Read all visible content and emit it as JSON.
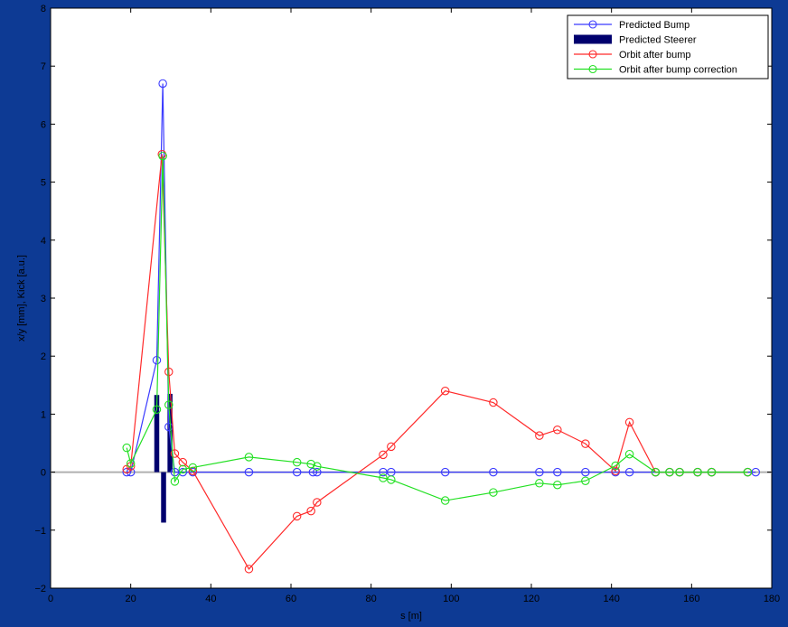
{
  "chart_data": {
    "type": "line",
    "title": "",
    "xlabel": "s [m]",
    "ylabel": "x/y [mm], Kick [a.u.]",
    "xlim": [
      0,
      180
    ],
    "ylim": [
      -2,
      8
    ],
    "xticks": [
      0,
      20,
      40,
      60,
      80,
      100,
      120,
      140,
      160,
      180
    ],
    "yticks": [
      -2,
      -1,
      0,
      1,
      2,
      3,
      4,
      5,
      6,
      7,
      8
    ],
    "grid": false,
    "legend_position": "top-right",
    "series": [
      {
        "name": "Predicted Bump",
        "kind": "line-marker",
        "color": "#3b3bff",
        "x": [
          19,
          20,
          26.5,
          28,
          29.5,
          31,
          33,
          35.5,
          49.5,
          61.5,
          65.5,
          66.5,
          83,
          85,
          98.5,
          110.5,
          122,
          126.5,
          133.5,
          141,
          144.5,
          151,
          154.5,
          157,
          161.5,
          165,
          174,
          176
        ],
        "y": [
          0,
          0,
          1.93,
          6.7,
          0.78,
          0,
          0,
          0,
          0,
          0,
          0,
          0,
          0,
          0,
          0,
          0,
          0,
          0,
          0,
          0,
          0,
          0,
          0,
          0,
          0,
          0,
          0,
          0
        ]
      },
      {
        "name": "Predicted Steerer",
        "kind": "bar",
        "color": "#00006e",
        "x": [
          26.5,
          28.2,
          29.8
        ],
        "y": [
          1.33,
          -0.87,
          1.35
        ]
      },
      {
        "name": "Orbit after bump",
        "kind": "line-marker",
        "color": "#ff2a2a",
        "x": [
          19,
          20,
          27.8,
          29.5,
          31,
          33,
          35.5,
          49.5,
          61.5,
          65,
          66.5,
          83,
          85,
          98.5,
          110.5,
          122,
          126.5,
          133.5,
          141,
          144.5,
          151,
          154.5,
          157,
          161.5,
          165,
          174
        ],
        "y": [
          0.05,
          0.1,
          5.48,
          1.73,
          0.32,
          0.17,
          0.02,
          -1.67,
          -0.76,
          -0.67,
          -0.52,
          0.3,
          0.44,
          1.4,
          1.2,
          0.63,
          0.73,
          0.49,
          0.02,
          0.86,
          0,
          0,
          0,
          0,
          0,
          0
        ]
      },
      {
        "name": "Orbit after bump correction",
        "kind": "line-marker",
        "color": "#22e022",
        "x": [
          19,
          20,
          26.5,
          28,
          29.5,
          31,
          33,
          35.5,
          49.5,
          61.5,
          65,
          66.5,
          83,
          85,
          98.5,
          110.5,
          122,
          126.5,
          133.5,
          141,
          144.5,
          151,
          154.5,
          157,
          161.5,
          165,
          174
        ],
        "y": [
          0.42,
          0.15,
          1.08,
          5.45,
          1.16,
          -0.16,
          0.05,
          0.08,
          0.26,
          0.17,
          0.14,
          0.1,
          -0.1,
          -0.13,
          -0.49,
          -0.35,
          -0.19,
          -0.22,
          -0.15,
          0.11,
          0.31,
          0,
          0,
          0,
          0,
          0,
          0
        ]
      }
    ]
  }
}
